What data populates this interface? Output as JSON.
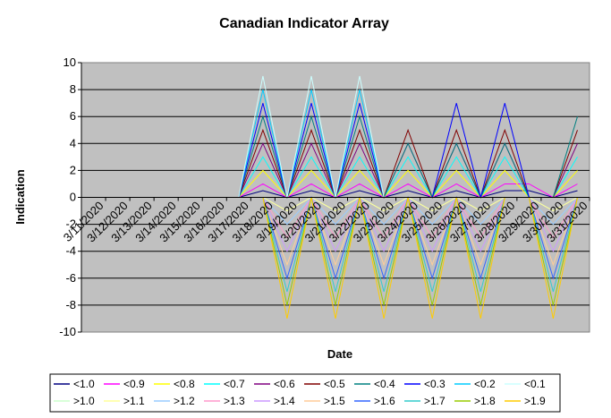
{
  "chart_data": {
    "type": "line",
    "title": "Canadian Indicator Array",
    "xlabel": "Date",
    "ylabel": "Indication",
    "ylim": [
      -10,
      10
    ],
    "yticks": [
      -10,
      -8,
      -6,
      -4,
      -2,
      0,
      2,
      4,
      6,
      8,
      10
    ],
    "grid": true,
    "legend_position": "bottom",
    "plot_background": "#c0c0c0",
    "categories": [
      "3/11/2020",
      "3/12/2020",
      "3/13/2020",
      "3/14/2020",
      "3/15/2020",
      "3/16/2020",
      "3/17/2020",
      "3/18/2020",
      "3/19/2020",
      "3/20/2020",
      "3/21/2020",
      "3/22/2020",
      "3/23/2020",
      "3/24/2020",
      "3/25/2020",
      "3/26/2020",
      "3/27/2020",
      "3/28/2020",
      "3/29/2020",
      "3/30/2020",
      "3/31/2020"
    ],
    "series": [
      {
        "name": "<1.0",
        "color": "#000080",
        "values": [
          0,
          0,
          0,
          0,
          0,
          0,
          0,
          0.5,
          0,
          0.5,
          0,
          0.5,
          0,
          0.5,
          0,
          0.5,
          0,
          0.5,
          0.5,
          0,
          0.5
        ]
      },
      {
        "name": "<0.9",
        "color": "#ff00ff",
        "values": [
          0,
          0,
          0,
          0,
          0,
          0,
          0,
          1,
          0,
          1,
          0,
          1,
          0,
          1,
          0,
          1,
          0,
          1,
          1,
          0,
          1
        ]
      },
      {
        "name": "<0.8",
        "color": "#ffff00",
        "values": [
          0,
          0,
          0,
          0,
          0,
          0,
          0,
          2,
          0,
          2,
          0,
          2,
          0,
          2,
          0,
          2,
          0,
          2,
          0,
          0,
          2
        ]
      },
      {
        "name": "<0.7",
        "color": "#00ffff",
        "values": [
          0,
          0,
          0,
          0,
          0,
          0,
          0,
          3,
          0,
          3,
          0,
          3,
          0,
          3,
          0,
          3,
          0,
          3,
          0,
          0,
          3
        ]
      },
      {
        "name": "<0.6",
        "color": "#800080",
        "values": [
          0,
          0,
          0,
          0,
          0,
          0,
          0,
          4,
          0,
          4,
          0,
          4,
          0,
          4,
          0,
          4,
          0,
          4,
          0,
          0,
          4
        ]
      },
      {
        "name": "<0.5",
        "color": "#800000",
        "values": [
          0,
          0,
          0,
          0,
          0,
          0,
          0,
          5,
          0,
          5,
          0,
          5,
          0,
          5,
          0,
          5,
          0,
          5,
          0,
          0,
          5
        ]
      },
      {
        "name": "<0.4",
        "color": "#008080",
        "values": [
          0,
          0,
          0,
          0,
          0,
          0,
          0,
          6,
          0,
          6,
          0,
          6,
          0,
          4,
          0,
          4,
          0,
          4,
          0,
          0,
          6
        ]
      },
      {
        "name": "<0.3",
        "color": "#0000ff",
        "values": [
          0,
          0,
          0,
          0,
          0,
          0,
          0,
          7,
          0,
          7,
          0,
          7,
          0,
          0,
          0,
          7,
          0,
          7,
          0,
          0,
          0
        ]
      },
      {
        "name": "<0.2",
        "color": "#00ccff",
        "values": [
          0,
          0,
          0,
          0,
          0,
          0,
          0,
          8,
          0,
          8,
          0,
          8,
          0,
          0,
          0,
          0,
          0,
          0,
          0,
          0,
          0
        ]
      },
      {
        "name": "<0.1",
        "color": "#ccffff",
        "values": [
          0,
          0,
          0,
          0,
          0,
          0,
          0,
          9,
          0,
          9,
          0,
          9,
          0,
          0,
          0,
          0,
          0,
          0,
          0,
          0,
          0
        ]
      },
      {
        "name": ">1.0",
        "color": "#ccffcc",
        "values": [
          0,
          0,
          0,
          0,
          0,
          0,
          0,
          0,
          -1,
          0,
          -1,
          0,
          -1,
          0,
          -1,
          0,
          -1,
          0,
          0,
          -1,
          0
        ]
      },
      {
        "name": ">1.1",
        "color": "#ffff99",
        "values": [
          0,
          0,
          0,
          0,
          0,
          0,
          0,
          0,
          -1,
          0,
          -1,
          0,
          -1,
          0,
          -1,
          0,
          -1,
          0,
          0,
          -1,
          0
        ]
      },
      {
        "name": ">1.2",
        "color": "#99ccff",
        "values": [
          0,
          0,
          0,
          0,
          0,
          0,
          0,
          0,
          -2,
          0,
          -2,
          0,
          -2,
          0,
          -2,
          0,
          -2,
          0,
          0,
          -2,
          0
        ]
      },
      {
        "name": ">1.3",
        "color": "#ff99cc",
        "values": [
          0,
          0,
          0,
          0,
          0,
          0,
          0,
          0,
          -3,
          0,
          -3,
          0,
          -3,
          0,
          -3,
          0,
          -3,
          0,
          0,
          -3,
          0
        ]
      },
      {
        "name": ">1.4",
        "color": "#cc99ff",
        "values": [
          0,
          0,
          0,
          0,
          0,
          0,
          0,
          0,
          -4,
          0,
          -4,
          0,
          -4,
          0,
          -4,
          0,
          -4,
          0,
          0,
          -4,
          0
        ]
      },
      {
        "name": ">1.5",
        "color": "#ffcc99",
        "values": [
          0,
          0,
          0,
          0,
          0,
          0,
          0,
          0,
          -5,
          0,
          -5,
          0,
          -5,
          0,
          -5,
          0,
          -5,
          0,
          0,
          -5,
          0
        ]
      },
      {
        "name": ">1.6",
        "color": "#3366ff",
        "values": [
          0,
          0,
          0,
          0,
          0,
          0,
          0,
          0,
          -6,
          0,
          -6,
          0,
          -6,
          0,
          -6,
          0,
          -6,
          0,
          0,
          -6,
          0
        ]
      },
      {
        "name": ">1.7",
        "color": "#33cccc",
        "values": [
          0,
          0,
          0,
          0,
          0,
          0,
          0,
          0,
          -7,
          0,
          -7,
          0,
          -7,
          0,
          -7,
          0,
          -7,
          0,
          0,
          -7,
          0
        ]
      },
      {
        "name": ">1.8",
        "color": "#99cc00",
        "values": [
          0,
          0,
          0,
          0,
          0,
          0,
          0,
          0,
          -8,
          0,
          -8,
          0,
          -8,
          0,
          -8,
          0,
          -8,
          0,
          0,
          -8,
          0
        ]
      },
      {
        "name": ">1.9",
        "color": "#ffcc00",
        "values": [
          0,
          0,
          0,
          0,
          0,
          0,
          0,
          0,
          -9,
          0,
          -9,
          0,
          -9,
          0,
          -9,
          0,
          -9,
          0,
          0,
          -9,
          0
        ]
      }
    ]
  }
}
